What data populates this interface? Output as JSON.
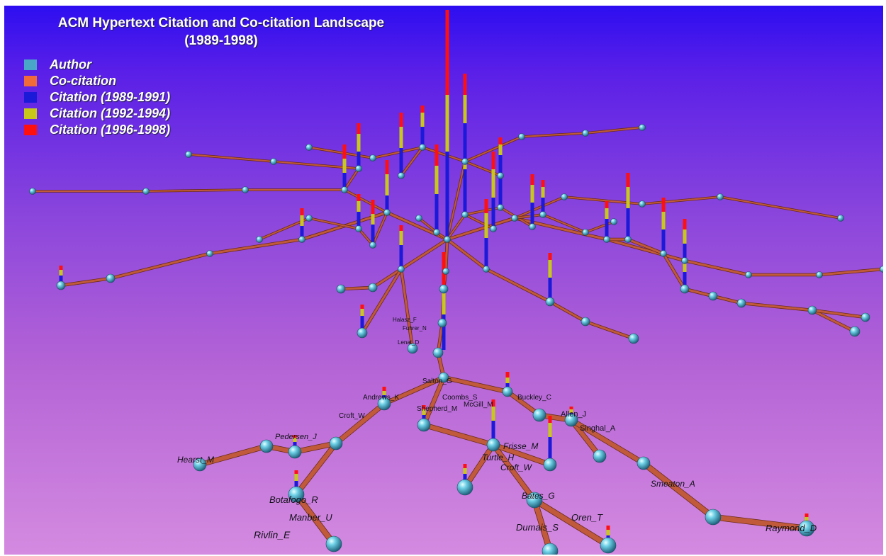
{
  "title": {
    "line1": "ACM Hypertext Citation and Co-citation Landscape",
    "line2": "(1989-1998)"
  },
  "legend": [
    {
      "label": "Author",
      "color": "#4aa6c8"
    },
    {
      "label": "Co-citation",
      "color": "#f06a3a"
    },
    {
      "label": "Citation (1989-1991)",
      "color": "#1a1ad8"
    },
    {
      "label": "Citation (1992-1994)",
      "color": "#c8c81a"
    },
    {
      "label": "Citation (1996-1998)",
      "color": "#ff1010"
    }
  ],
  "colors": {
    "node": "#5fc4dc",
    "edge": "#c05a3a",
    "label": "#101018"
  },
  "author_labels": [
    "Salton_G",
    "Andrews_K",
    "Croft_W",
    "Coombs_S",
    "Shepherd_M",
    "McGill_M",
    "Buckley_C",
    "Allen_J",
    "Singhal_A",
    "Pedersen_J",
    "Hearst_M",
    "Turtle_H",
    "Frisse_M",
    "Croft_W",
    "Botafogo_R",
    "Manber_U",
    "Rivlin_E",
    "Bates_G",
    "Oren_T",
    "Dumais_S",
    "Smeaton_A",
    "Raymond_D",
    "Lenat_D",
    "Halasz_F",
    "Fuhrer_N"
  ]
}
